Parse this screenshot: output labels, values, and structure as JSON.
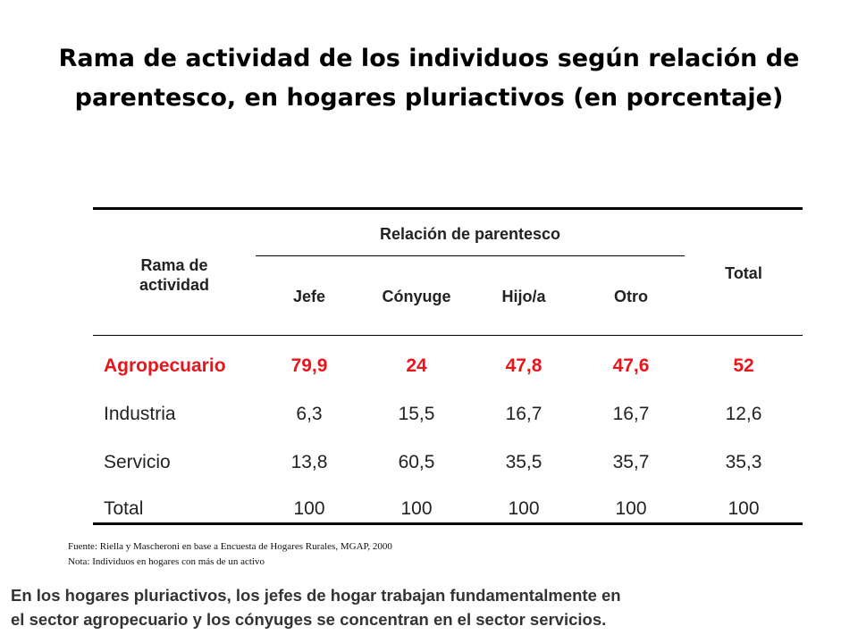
{
  "title_line1": "Rama de actividad de los individuos según relación de",
  "title_line2": "parentesco, en hogares pluriactivos (en porcentaje)",
  "table": {
    "row_header_line1": "Rama de",
    "row_header_line2": "actividad",
    "group_header": "Relación de parentesco",
    "columns": [
      "Jefe",
      "Cónyuge",
      "Hijo/a",
      "Otro"
    ],
    "total_header": "Total",
    "rows": [
      {
        "label": "Agropecuario",
        "values": [
          "79,9",
          "24",
          "47,8",
          "47,6",
          "52"
        ],
        "highlight": true
      },
      {
        "label": "Industria",
        "values": [
          "6,3",
          "15,5",
          "16,7",
          "16,7",
          "12,6"
        ],
        "highlight": false
      },
      {
        "label": "Servicio",
        "values": [
          "13,8",
          "60,5",
          "35,5",
          "35,7",
          "35,3"
        ],
        "highlight": false
      },
      {
        "label": "Total",
        "values": [
          "100",
          "100",
          "100",
          "100",
          "100"
        ],
        "highlight": false
      }
    ]
  },
  "source_note": "Fuente: Riella y Mascheroni  en base a Encuesta de Hogares Rurales, MGAP, 2000",
  "nota": "Nota: Individuos en hogares con más de un activo",
  "summary_line1": "En los hogares pluriactivos, los jefes de hogar trabajan fundamentalmente en",
  "summary_line2": "el sector agropecuario y los cónyuges se concentran en el sector servicios.",
  "colors": {
    "highlight": "#e8161c",
    "text": "#222222"
  }
}
